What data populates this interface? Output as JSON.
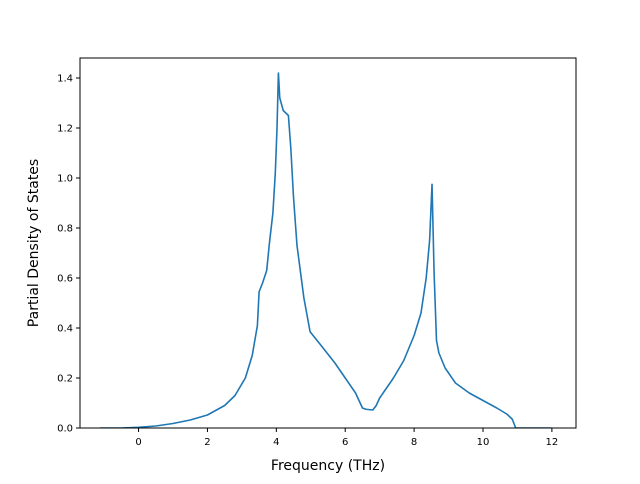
{
  "chart_data": {
    "type": "line",
    "title": "",
    "xlabel": "Frequency (THz)",
    "ylabel": "Partial Density of States",
    "xlim": [
      -1.7,
      12.7
    ],
    "ylim": [
      0.0,
      1.48
    ],
    "xticks": [
      0,
      2,
      4,
      6,
      8,
      10,
      12
    ],
    "yticks": [
      0.0,
      0.2,
      0.4,
      0.6,
      0.8,
      1.0,
      1.2,
      1.4
    ],
    "grid": false,
    "legend": "none",
    "colors": {
      "line": "#1f77b4",
      "axes": "#000000"
    },
    "series": [
      {
        "x": [
          -1.12,
          -0.5,
          0.0,
          0.5,
          1.0,
          1.5,
          2.0,
          2.5,
          2.8,
          3.1,
          3.3,
          3.45,
          3.5,
          3.6,
          3.72,
          3.8,
          3.9,
          3.97,
          4.02,
          4.06,
          4.1,
          4.2,
          4.35,
          4.42,
          4.5,
          4.6,
          4.8,
          4.98,
          5.3,
          5.7,
          6.0,
          6.3,
          6.5,
          6.6,
          6.8,
          6.9,
          7.0,
          7.1,
          7.4,
          7.7,
          8.0,
          8.2,
          8.35,
          8.45,
          8.52,
          8.58,
          8.65,
          8.72,
          8.9,
          9.2,
          9.6,
          10.0,
          10.4,
          10.7,
          10.85,
          10.95,
          11.2,
          11.6,
          11.98
        ],
        "y": [
          0.0,
          0.0,
          0.003,
          0.008,
          0.018,
          0.032,
          0.052,
          0.09,
          0.13,
          0.2,
          0.29,
          0.41,
          0.545,
          0.58,
          0.63,
          0.74,
          0.86,
          1.02,
          1.2,
          1.42,
          1.32,
          1.27,
          1.25,
          1.12,
          0.92,
          0.73,
          0.52,
          0.385,
          0.33,
          0.26,
          0.2,
          0.14,
          0.08,
          0.075,
          0.072,
          0.09,
          0.12,
          0.14,
          0.2,
          0.27,
          0.37,
          0.46,
          0.6,
          0.75,
          0.975,
          0.62,
          0.35,
          0.3,
          0.24,
          0.18,
          0.14,
          0.11,
          0.08,
          0.055,
          0.035,
          0.0,
          0.0,
          0.0,
          0.0
        ]
      }
    ]
  }
}
